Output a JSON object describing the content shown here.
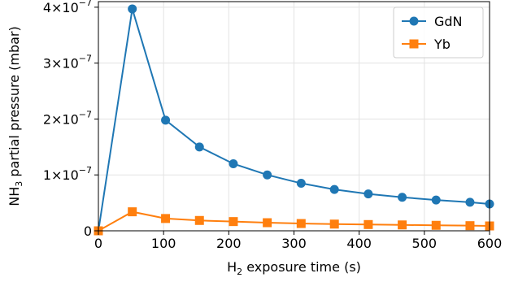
{
  "chart_data": {
    "type": "line",
    "xlabel": "H2 exposure time (s)",
    "xlabel_parts": {
      "base": "H",
      "sub": "2",
      "rest": " exposure time (s)"
    },
    "ylabel": "NH3 partial pressure (mbar)",
    "ylabel_parts": {
      "base": "NH",
      "sub": "3",
      "rest": " partial pressure (mbar)"
    },
    "xlim": [
      0,
      600
    ],
    "ylim": [
      0,
      4.1e-07
    ],
    "grid": true,
    "legend_position": "top-right",
    "x_ticks": [
      {
        "value": 0,
        "label": "0"
      },
      {
        "value": 100,
        "label": "100"
      },
      {
        "value": 200,
        "label": "200"
      },
      {
        "value": 300,
        "label": "300"
      },
      {
        "value": 400,
        "label": "400"
      },
      {
        "value": 500,
        "label": "500"
      },
      {
        "value": 600,
        "label": "600"
      }
    ],
    "y_ticks": [
      {
        "value": 0,
        "mantissa": "0",
        "exponent": ""
      },
      {
        "value": 1e-07,
        "mantissa": "1×10",
        "exponent": "−7"
      },
      {
        "value": 2e-07,
        "mantissa": "2×10",
        "exponent": "−7"
      },
      {
        "value": 3e-07,
        "mantissa": "3×10",
        "exponent": "−7"
      },
      {
        "value": 4e-07,
        "mantissa": "4×10",
        "exponent": "−7"
      }
    ],
    "series": [
      {
        "name": "GdN",
        "color": "#1f77b4",
        "marker": "circle",
        "x": [
          0,
          52,
          103,
          155,
          207,
          259,
          311,
          362,
          414,
          466,
          518,
          570,
          600
        ],
        "y": [
          0,
          3.97e-07,
          1.98e-07,
          1.5e-07,
          1.2e-07,
          1e-07,
          8.5e-08,
          7.4e-08,
          6.6e-08,
          6e-08,
          5.5e-08,
          5.1e-08,
          4.8e-08
        ]
      },
      {
        "name": "Yb",
        "color": "#ff7f0e",
        "marker": "square",
        "x": [
          0,
          52,
          103,
          155,
          207,
          259,
          311,
          362,
          414,
          466,
          518,
          570,
          600
        ],
        "y": [
          0,
          3.4e-08,
          2.2e-08,
          1.85e-08,
          1.65e-08,
          1.45e-08,
          1.3e-08,
          1.2e-08,
          1.12e-08,
          1.05e-08,
          9.8e-09,
          9.2e-09,
          8.7e-09
        ]
      }
    ]
  }
}
